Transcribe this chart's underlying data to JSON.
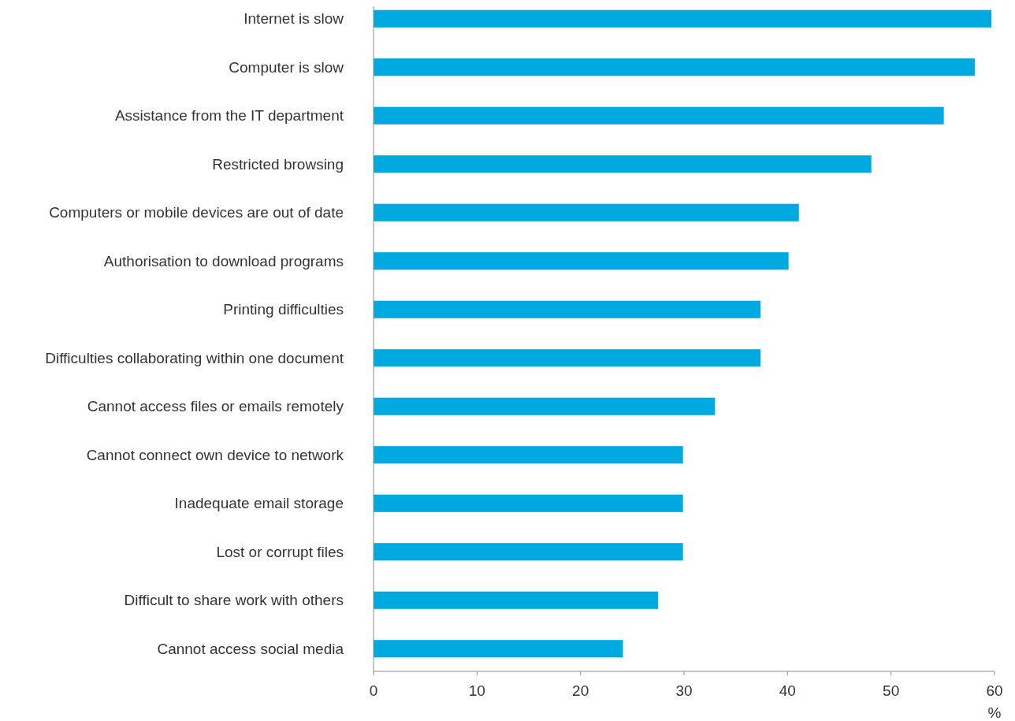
{
  "chart_data": {
    "type": "bar",
    "orientation": "horizontal",
    "xlabel": "%",
    "categories": [
      "Internet is slow",
      "Computer is slow",
      "Assistance from the IT department",
      "Restricted browsing",
      "Computers or mobile devices are out of date",
      "Authorisation to download programs",
      "Printing difficulties",
      "Difficulties collaborating within one document",
      "Cannot access files or emails remotely",
      "Cannot connect own device to network",
      "Inadequate email storage",
      "Lost or corrupt files",
      "Difficult to share work with others",
      "Cannot access social media"
    ],
    "values": [
      59.7,
      58.1,
      55.1,
      48.1,
      41.1,
      40.1,
      37.4,
      37.4,
      33,
      29.9,
      29.9,
      29.9,
      27.5,
      24.1
    ],
    "color": "#00a9e0",
    "xlim": [
      0,
      60
    ],
    "xticks": [
      0,
      10,
      20,
      30,
      40,
      50,
      60
    ],
    "grid": false
  }
}
